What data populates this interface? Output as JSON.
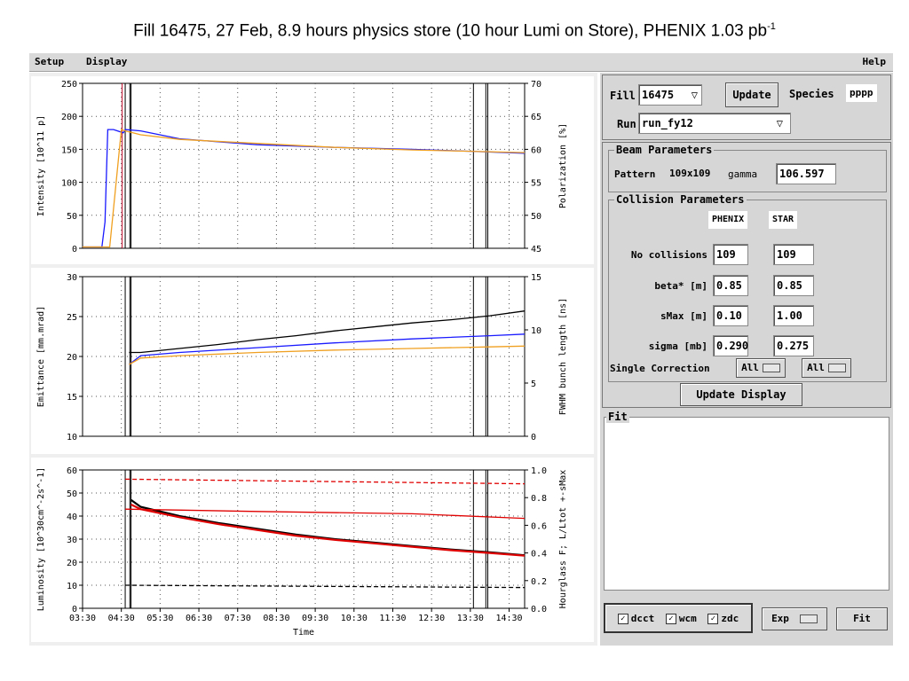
{
  "page_title": {
    "main": "Fill 16475, 27 Feb, 8.9 hours physics store (10 hour Lumi on Store), PHENIX 1.03 pb",
    "superscript": "-1"
  },
  "menu": {
    "setup": "Setup",
    "display": "Display",
    "help": "Help"
  },
  "controls": {
    "fill_label": "Fill",
    "fill_value": "16475",
    "update_button": "Update",
    "species_label": "Species",
    "species_value": "pppp",
    "run_label": "Run",
    "run_value": "run_fy12"
  },
  "beam_params": {
    "title": "Beam Parameters",
    "pattern_label": "Pattern",
    "pattern_value": "109x109",
    "gamma_label": "gamma",
    "gamma_value": "106.597"
  },
  "collision_params": {
    "title": "Collision Parameters",
    "col_phenix": "PHENIX",
    "col_star": "STAR",
    "rows": [
      {
        "label": "No collisions",
        "phenix": "109",
        "star": "109"
      },
      {
        "label": "beta* [m]",
        "phenix": "0.85",
        "star": "0.85"
      },
      {
        "label": "sMax [m]",
        "phenix": "0.10",
        "star": "1.00"
      },
      {
        "label": "sigma [mb]",
        "phenix": "0.290",
        "star": "0.275"
      }
    ],
    "single_correction_label": "Single Correction",
    "sc_phenix": "All",
    "sc_star": "All"
  },
  "update_display_button": "Update Display",
  "fit": {
    "title": "Fit",
    "dcct": "dcct",
    "wcm": "wcm",
    "zdc": "zdc",
    "exp": "Exp",
    "fit_button": "Fit"
  },
  "colors": {
    "blue": "#1a1aff",
    "orange": "#f0a020",
    "black": "#000000",
    "red": "#e00000",
    "panel_bg": "#d6d6d6"
  },
  "chart_data": [
    {
      "type": "line",
      "ylabel": "Intensity [10^11 p]",
      "y2label": "Polarization [%]",
      "ylim": [
        0,
        250
      ],
      "y2lim": [
        45,
        70
      ],
      "yticks": [
        "0",
        "50",
        "100",
        "150",
        "200",
        "250"
      ],
      "y2ticks": [
        "45",
        "50",
        "55",
        "60",
        "65",
        "70"
      ],
      "x_range_hours": [
        3.5,
        14.9
      ],
      "series": [
        {
          "color": "blue",
          "x": [
            3.5,
            4.0,
            4.08,
            4.15,
            4.3,
            4.55,
            4.6,
            5.0,
            6.0,
            8.0,
            10.0,
            12.0,
            13.5,
            14.9
          ],
          "y": [
            2,
            2,
            40,
            180,
            180,
            175,
            180,
            178,
            166,
            157,
            153,
            150,
            147,
            144
          ]
        },
        {
          "color": "orange",
          "x": [
            3.5,
            4.2,
            4.35,
            4.5,
            4.6,
            4.8,
            5.0,
            6.0,
            8.0,
            10.0,
            12.0,
            13.5,
            14.9
          ],
          "y": [
            2,
            2,
            90,
            180,
            178,
            175,
            172,
            165,
            159,
            153,
            149,
            147,
            145
          ]
        }
      ]
    },
    {
      "type": "line",
      "ylabel": "Emittance [mm.mrad]",
      "y2label": "FWHM bunch length [ns]",
      "ylim": [
        10,
        30
      ],
      "y2lim": [
        0,
        15
      ],
      "yticks": [
        "10",
        "15",
        "20",
        "25",
        "30"
      ],
      "y2ticks": [
        "0",
        "5",
        "10",
        "15"
      ],
      "x_range_hours": [
        3.5,
        14.9
      ],
      "series": [
        {
          "color": "black",
          "x": [
            4.7,
            5.0,
            6.0,
            7.0,
            8.0,
            9.0,
            10.0,
            11.0,
            12.0,
            13.0,
            14.0,
            14.9
          ],
          "y": [
            20.5,
            20.5,
            21.0,
            21.5,
            22.1,
            22.6,
            23.2,
            23.7,
            24.2,
            24.6,
            25.1,
            25.7
          ]
        },
        {
          "color": "blue",
          "x": [
            4.7,
            5.0,
            6.0,
            8.0,
            10.0,
            12.0,
            14.0,
            14.9
          ],
          "y": [
            19.0,
            20.1,
            20.5,
            21.1,
            21.7,
            22.2,
            22.6,
            22.8
          ]
        },
        {
          "color": "orange",
          "x": [
            4.7,
            5.0,
            6.0,
            8.0,
            10.0,
            12.0,
            14.0,
            14.9
          ],
          "y": [
            19.0,
            19.8,
            20.1,
            20.5,
            20.8,
            21.0,
            21.2,
            21.3
          ]
        }
      ]
    },
    {
      "type": "line",
      "ylabel": "Luminosity [10^30cm^-2s^-1]",
      "y2label": "Hourglass F; L/Ltot +-sMax",
      "xlabel": "Time",
      "ylim": [
        0,
        60
      ],
      "y2lim": [
        0.0,
        1.0
      ],
      "yticks": [
        "0",
        "10",
        "20",
        "30",
        "40",
        "50",
        "60"
      ],
      "y2ticks": [
        "0.0",
        "0.2",
        "0.4",
        "0.6",
        "0.8",
        "1.0"
      ],
      "xticks": [
        "03:30",
        "04:30",
        "05:30",
        "06:30",
        "07:30",
        "08:30",
        "09:30",
        "10:30",
        "11:30",
        "12:30",
        "13:30",
        "14:30"
      ],
      "x_range_hours": [
        3.5,
        14.9
      ],
      "series": [
        {
          "color": "black",
          "x": [
            4.75,
            5.0,
            6.0,
            7.0,
            8.0,
            9.0,
            10.0,
            11.0,
            12.0,
            13.0,
            14.0,
            14.9
          ],
          "y": [
            47,
            44,
            40,
            37,
            34.5,
            32,
            30,
            28.5,
            27,
            25.5,
            24.3,
            23
          ]
        },
        {
          "color": "red",
          "x": [
            4.75,
            5.0,
            6.0,
            7.0,
            8.0,
            9.0,
            10.0,
            11.0,
            12.0,
            13.0,
            14.0,
            14.9
          ],
          "y": [
            45,
            43,
            39.5,
            36.5,
            34,
            31.5,
            29.7,
            28.2,
            26.7,
            25.2,
            24,
            22.8
          ]
        },
        {
          "color": "red",
          "style": "dashed",
          "x": [
            4.6,
            14.9
          ],
          "y": [
            56,
            54
          ]
        },
        {
          "color": "red",
          "x": [
            4.6,
            8.0,
            12.0,
            14.9
          ],
          "y": [
            43,
            42,
            41,
            39
          ]
        },
        {
          "color": "black",
          "style": "dashed",
          "x": [
            4.6,
            14.9
          ],
          "y": [
            10,
            9
          ]
        }
      ]
    }
  ]
}
